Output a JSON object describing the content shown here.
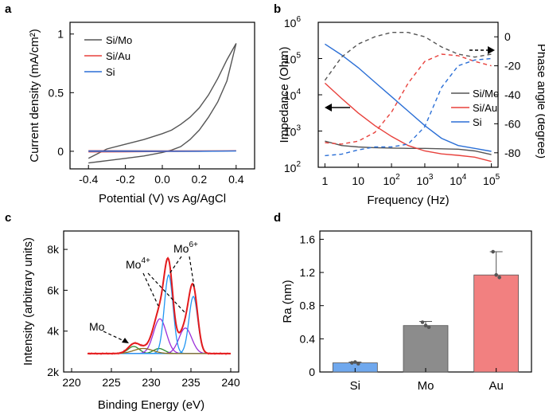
{
  "chart_data": [
    {
      "panel": "a",
      "type": "line",
      "xlabel": "Potential (V) vs Ag/AgCl",
      "ylabel": "Current density (mA/cm²)",
      "xlim": [
        -0.5,
        0.5
      ],
      "ylim": [
        -0.15,
        1.1
      ],
      "xticks": [
        "-0.4",
        "-0.2",
        "0.0",
        "0.2",
        "0.4"
      ],
      "xtick_values": [
        -0.4,
        -0.2,
        0.0,
        0.2,
        0.4
      ],
      "yticks": [
        "0",
        "0.5",
        "1"
      ],
      "ytick_values": [
        0,
        0.5,
        1
      ],
      "legend": [
        "Si/Mo",
        "Si/Au",
        "Si"
      ],
      "series": [
        {
          "name": "Si/Mo",
          "color": "#555555",
          "x": [
            -0.4,
            -0.35,
            -0.3,
            -0.2,
            -0.1,
            0.0,
            0.05,
            0.1,
            0.15,
            0.2,
            0.25,
            0.3,
            0.35,
            0.4,
            0.35,
            0.3,
            0.25,
            0.2,
            0.15,
            0.1,
            0.05,
            0.0,
            -0.1,
            -0.2,
            -0.3,
            -0.4
          ],
          "y": [
            -0.06,
            -0.02,
            0.02,
            0.06,
            0.1,
            0.15,
            0.18,
            0.23,
            0.29,
            0.37,
            0.48,
            0.62,
            0.78,
            0.92,
            0.6,
            0.42,
            0.29,
            0.18,
            0.1,
            0.04,
            0.01,
            -0.01,
            -0.04,
            -0.06,
            -0.08,
            -0.1
          ]
        },
        {
          "name": "Si/Au",
          "color": "#e8413c",
          "x": [
            -0.4,
            -0.2,
            0.0,
            0.2,
            0.4,
            0.2,
            0.0,
            -0.2,
            -0.4
          ],
          "y": [
            0.005,
            0.004,
            0.003,
            0.003,
            0.004,
            0.0,
            -0.002,
            -0.004,
            -0.005
          ]
        },
        {
          "name": "Si",
          "color": "#2b6fd6",
          "x": [
            -0.4,
            -0.2,
            0.0,
            0.2,
            0.4,
            0.2,
            0.0,
            -0.2,
            -0.4
          ],
          "y": [
            0.002,
            0.002,
            0.001,
            0.001,
            0.002,
            0.0,
            0.0,
            0.0,
            0.0
          ]
        }
      ]
    },
    {
      "panel": "b",
      "type": "line",
      "xlabel": "Frequency (Hz)",
      "ylabel": "Impedance (Ohm)",
      "y2label": "Phase angle (degree)",
      "xscale": "log",
      "yscale": "log",
      "xlim_exp": [
        -0.2,
        5.2
      ],
      "ylim_exp": [
        2,
        6
      ],
      "y2lim": [
        -90,
        10
      ],
      "xticks": [
        "1",
        "10",
        "10",
        "10",
        "10",
        "10"
      ],
      "xtick_exp": [
        "",
        "",
        "2",
        "3",
        "4",
        "5"
      ],
      "xtick_values": [
        1,
        10,
        100,
        1000,
        10000,
        100000
      ],
      "yticks": [
        "10",
        "10",
        "10",
        "10",
        "10"
      ],
      "ytick_exp": [
        "2",
        "3",
        "4",
        "5",
        "6"
      ],
      "y2ticks": [
        "0",
        "-20",
        "-40",
        "-60",
        "-80"
      ],
      "y2tick_values": [
        0,
        -20,
        -40,
        -60,
        -80
      ],
      "legend": [
        "Si/Mo",
        "Si/Au",
        "Si"
      ],
      "series": [
        {
          "name": "Si/Mo |Z|",
          "color": "#555555",
          "axis": "left",
          "dash": false,
          "log_f": [
            0,
            0.5,
            1,
            1.5,
            2,
            2.5,
            3,
            3.5,
            4,
            4.5,
            5
          ],
          "log_z": [
            2.72,
            2.6,
            2.56,
            2.54,
            2.53,
            2.52,
            2.52,
            2.51,
            2.5,
            2.45,
            2.35
          ]
        },
        {
          "name": "Si/Au |Z|",
          "color": "#e8413c",
          "axis": "left",
          "dash": false,
          "log_f": [
            0,
            0.5,
            1,
            1.5,
            2,
            2.5,
            3,
            3.5,
            4,
            4.5,
            5
          ],
          "log_z": [
            4.32,
            3.9,
            3.5,
            3.15,
            2.85,
            2.6,
            2.45,
            2.37,
            2.33,
            2.28,
            2.16
          ]
        },
        {
          "name": "Si |Z|",
          "color": "#2b6fd6",
          "axis": "left",
          "dash": false,
          "log_f": [
            0,
            0.5,
            1,
            1.5,
            2,
            2.5,
            3,
            3.5,
            4,
            4.5,
            5
          ],
          "log_z": [
            5.4,
            5.1,
            4.75,
            4.35,
            3.95,
            3.55,
            3.15,
            2.8,
            2.6,
            2.52,
            2.44
          ]
        },
        {
          "name": "Si/Mo phase",
          "color": "#555555",
          "axis": "right",
          "dash": true,
          "log_f": [
            0,
            0.5,
            1,
            1.5,
            2,
            2.5,
            3,
            3.5,
            4,
            4.5,
            5
          ],
          "phase": [
            -30,
            -14,
            -5,
            0,
            3,
            3,
            0,
            -7,
            -12,
            -14,
            -12
          ]
        },
        {
          "name": "Si/Au phase",
          "color": "#e8413c",
          "axis": "right",
          "dash": true,
          "log_f": [
            0,
            0.5,
            1,
            1.5,
            2,
            2.5,
            3,
            3.5,
            4,
            4.5,
            5
          ],
          "phase": [
            -73,
            -74,
            -72,
            -66,
            -52,
            -32,
            -17,
            -12,
            -13,
            -17,
            -20
          ]
        },
        {
          "name": "Si phase",
          "color": "#2b6fd6",
          "axis": "right",
          "dash": true,
          "log_f": [
            0,
            0.5,
            1,
            1.5,
            2,
            2.5,
            3,
            3.5,
            4,
            4.5,
            5
          ],
          "phase": [
            -82,
            -81,
            -78,
            -76,
            -76,
            -74,
            -62,
            -35,
            -20,
            -16,
            -15
          ]
        }
      ]
    },
    {
      "panel": "c",
      "type": "line",
      "xlabel": "Binding Energy (eV)",
      "ylabel": "Intensity (arbitrary units)",
      "xlim": [
        219,
        241
      ],
      "ylim": [
        2000,
        8900
      ],
      "xticks": [
        "220",
        "225",
        "230",
        "235",
        "240"
      ],
      "xtick_values": [
        220,
        225,
        230,
        235,
        240
      ],
      "yticks": [
        "2k",
        "4k",
        "6k",
        "8k"
      ],
      "ytick_values": [
        2000,
        4000,
        6000,
        8000
      ],
      "annotations": [
        {
          "label": "Mo",
          "superscript": ""
        },
        {
          "label": "Mo",
          "superscript": "4+"
        },
        {
          "label": "Mo",
          "superscript": "6+"
        }
      ],
      "background": 2900,
      "components": [
        {
          "name": "Mo metal 3d5/2",
          "color": "#2e8b2e",
          "center": 227.8,
          "height": 350,
          "sigma": 0.7
        },
        {
          "name": "Mo metal 3d3/2",
          "color": "#2e8b2e",
          "center": 231.0,
          "height": 250,
          "sigma": 0.7
        },
        {
          "name": "Mo4+ 3d5/2",
          "color": "#9b30d9",
          "center": 231.1,
          "height": 1700,
          "sigma": 0.8
        },
        {
          "name": "Mo4+ 3d3/2",
          "color": "#9b30d9",
          "center": 234.3,
          "height": 1250,
          "sigma": 0.8
        },
        {
          "name": "Mo6+ 3d5/2",
          "color": "#2196f3",
          "center": 232.2,
          "height": 3850,
          "sigma": 0.55
        },
        {
          "name": "Mo6+ 3d3/2",
          "color": "#2196f3",
          "center": 235.3,
          "height": 2800,
          "sigma": 0.55
        },
        {
          "name": "low component",
          "color": "#8a6d1e",
          "center": 229.0,
          "height": 250,
          "sigma": 1.2
        }
      ],
      "raw_color": "#e31a1c",
      "fit_color": "#e31a1c"
    },
    {
      "panel": "d",
      "type": "bar",
      "xlabel": "",
      "ylabel": "Ra (nm)",
      "ylim": [
        0,
        1.7
      ],
      "yticks": [
        "0",
        "0.4",
        "0.8",
        "1.2",
        "1.6"
      ],
      "ytick_values": [
        0,
        0.4,
        0.8,
        1.2,
        1.6
      ],
      "categories": [
        "Si",
        "Mo",
        "Au"
      ],
      "values": [
        0.11,
        0.56,
        1.17
      ],
      "errors": [
        0.01,
        0.05,
        0.28
      ],
      "colors": [
        "#6fa8ee",
        "#8c8c8c",
        "#f28080"
      ],
      "points": [
        [
          0.11,
          0.12,
          0.1
        ],
        [
          0.6,
          0.56,
          0.54
        ],
        [
          1.45,
          1.17,
          1.14
        ]
      ]
    }
  ],
  "panels": {
    "a": {
      "letter": "a"
    },
    "b": {
      "letter": "b"
    },
    "c": {
      "letter": "c"
    },
    "d": {
      "letter": "d"
    }
  }
}
